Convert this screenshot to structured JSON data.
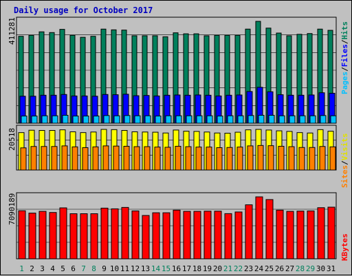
{
  "chart_data": [
    {
      "type": "bar",
      "title": "Daily usage for October 2017",
      "panel": "pages-files-hits",
      "max_label": "411281",
      "ylim": [
        0,
        411281
      ],
      "categories": [
        "1",
        "2",
        "3",
        "4",
        "5",
        "6",
        "7",
        "8",
        "9",
        "10",
        "11",
        "12",
        "13",
        "14",
        "15",
        "16",
        "17",
        "18",
        "19",
        "20",
        "21",
        "22",
        "23",
        "24",
        "25",
        "26",
        "27",
        "28",
        "29",
        "30",
        "31"
      ],
      "legend": [
        {
          "label": "Pages",
          "color": "#00c0ff"
        },
        {
          "label": "/",
          "color": "#000000"
        },
        {
          "label": "Files",
          "color": "#0000ff"
        },
        {
          "label": "/",
          "color": "#000000"
        },
        {
          "label": "Hits",
          "color": "#00805c"
        }
      ],
      "series": [
        {
          "name": "Hits",
          "color": "#00805c",
          "values": [
            351000,
            355000,
            369000,
            366000,
            379000,
            355000,
            347000,
            351000,
            380000,
            377000,
            376000,
            353000,
            353000,
            353000,
            349000,
            365000,
            361000,
            361000,
            353000,
            355000,
            355000,
            355000,
            380000,
            411281,
            384000,
            364000,
            353000,
            359000,
            362000,
            380000,
            375000
          ]
        },
        {
          "name": "Files",
          "color": "#0000ff",
          "values": [
            109000,
            109000,
            113000,
            113000,
            116000,
            110000,
            110000,
            109000,
            116000,
            115000,
            117000,
            111000,
            112000,
            110000,
            113000,
            114000,
            113000,
            114000,
            113000,
            110000,
            113000,
            114000,
            128000,
            145000,
            127000,
            115000,
            113000,
            113000,
            114000,
            123000,
            121000
          ]
        },
        {
          "name": "Pages",
          "color": "#00c0ff",
          "values": [
            29000,
            29000,
            30000,
            30000,
            32000,
            29000,
            29000,
            29000,
            31000,
            30000,
            31000,
            30000,
            30000,
            29000,
            30000,
            30000,
            30000,
            30000,
            30000,
            29000,
            30000,
            30000,
            31000,
            32000,
            32000,
            30000,
            30000,
            30000,
            30000,
            31000,
            30000
          ]
        }
      ]
    },
    {
      "type": "bar",
      "panel": "visits-sites",
      "max_label": "20518",
      "ylim": [
        0,
        20518
      ],
      "categories": [
        "1",
        "2",
        "3",
        "4",
        "5",
        "6",
        "7",
        "8",
        "9",
        "10",
        "11",
        "12",
        "13",
        "14",
        "15",
        "16",
        "17",
        "18",
        "19",
        "20",
        "21",
        "22",
        "23",
        "24",
        "25",
        "26",
        "27",
        "28",
        "29",
        "30",
        "31"
      ],
      "legend": [
        {
          "label": "Sites",
          "color": "#ff8000"
        },
        {
          "label": "/",
          "color": "#000000"
        },
        {
          "label": "Visits",
          "color": "#ffff00"
        }
      ],
      "series": [
        {
          "name": "Visits",
          "color": "#ffff00",
          "values": [
            18900,
            20100,
            20000,
            20000,
            20300,
            19300,
            18900,
            19200,
            20518,
            20400,
            20000,
            19300,
            19200,
            19100,
            18700,
            20200,
            19600,
            19500,
            19200,
            18700,
            18600,
            19100,
            20300,
            20518,
            20200,
            19800,
            19500,
            18900,
            18700,
            20400,
            19600
          ]
        },
        {
          "name": "Sites",
          "color": "#ff8000",
          "values": [
            11200,
            11900,
            11900,
            11900,
            12200,
            11700,
            11300,
            11700,
            12200,
            12100,
            12000,
            11800,
            11800,
            11600,
            11500,
            12000,
            11800,
            11600,
            11600,
            11300,
            11400,
            11600,
            12200,
            12400,
            12300,
            12000,
            11800,
            11400,
            11400,
            11900,
            11700
          ]
        }
      ]
    },
    {
      "type": "bar",
      "panel": "kbytes",
      "max_label": "7090189",
      "ylim": [
        0,
        7090189
      ],
      "categories": [
        "1",
        "2",
        "3",
        "4",
        "5",
        "6",
        "7",
        "8",
        "9",
        "10",
        "11",
        "12",
        "13",
        "14",
        "15",
        "16",
        "17",
        "18",
        "19",
        "20",
        "21",
        "22",
        "23",
        "24",
        "25",
        "26",
        "27",
        "28",
        "29",
        "30",
        "31"
      ],
      "legend": [
        {
          "label": "KBytes",
          "color": "#ff0000"
        }
      ],
      "series": [
        {
          "name": "KBytes",
          "color": "#ff0000",
          "values": [
            5500000,
            5230000,
            5430000,
            5300000,
            5830000,
            5160000,
            5160000,
            5160000,
            5800000,
            5720000,
            5880000,
            5480000,
            4960000,
            5270000,
            5270000,
            5570000,
            5430000,
            5430000,
            5450000,
            5450000,
            5170000,
            5360000,
            6180000,
            7090189,
            6780000,
            5570000,
            5430000,
            5460000,
            5480000,
            5850000,
            5910000
          ]
        }
      ]
    }
  ],
  "weekend_days": [
    "1",
    "7",
    "8",
    "14",
    "15",
    "21",
    "22",
    "28",
    "29"
  ],
  "colors": {
    "background": "#c0c0c0",
    "title": "#0000c0",
    "weekday": "#000000",
    "weekend": "#00805c",
    "grid": "#000000"
  }
}
